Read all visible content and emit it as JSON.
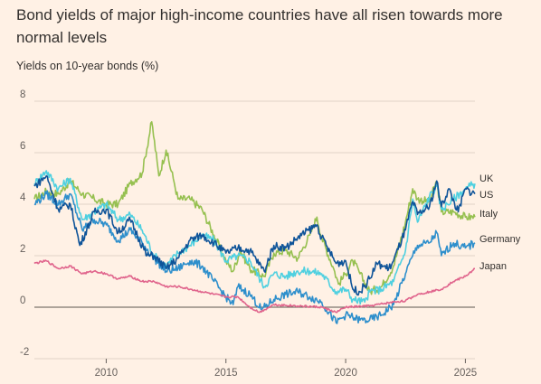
{
  "title": "Bond yields of major high-income countries have all risen towards more normal levels",
  "subtitle": "Yields on 10-year bonds (%)",
  "colors": {
    "background": "#FFF1E5",
    "gridline": "#E0D4C8",
    "zero_line": "#5E5650",
    "UK": "#4FD0E0",
    "US": "#0F5499",
    "Italy": "#96C050",
    "Germany": "#2E8FCC",
    "Japan": "#E0648C"
  },
  "chart_data": {
    "type": "line",
    "title": "Bond yields of major high-income countries have all risen towards more normal levels",
    "ylabel": "Yields on 10-year bonds (%)",
    "xlabel": "",
    "xlim": [
      2007.0,
      2025.4
    ],
    "ylim": [
      -2,
      8
    ],
    "y_ticks": [
      -2,
      0,
      2,
      4,
      6,
      8
    ],
    "x_ticks": [
      2010,
      2015,
      2020,
      2025
    ],
    "grid": true,
    "legend": "direct labels at right end",
    "series": [
      {
        "name": "UK",
        "color": "#4FD0E0",
        "x": [
          2007.0,
          2007.5,
          2008.0,
          2008.5,
          2009.0,
          2009.5,
          2010.0,
          2010.5,
          2011.0,
          2011.5,
          2012.0,
          2012.5,
          2013.0,
          2013.5,
          2014.0,
          2014.5,
          2015.0,
          2015.5,
          2016.0,
          2016.6,
          2017.0,
          2017.5,
          2018.0,
          2018.5,
          2019.0,
          2019.6,
          2020.0,
          2020.3,
          2020.8,
          2021.0,
          2021.5,
          2022.0,
          2022.5,
          2022.8,
          2023.0,
          2023.5,
          2023.8,
          2024.0,
          2024.5,
          2025.0,
          2025.4
        ],
        "values": [
          4.8,
          5.3,
          4.6,
          5.0,
          3.4,
          3.7,
          4.0,
          3.4,
          3.6,
          3.0,
          2.0,
          1.6,
          2.1,
          2.4,
          2.8,
          2.6,
          1.8,
          2.0,
          1.8,
          0.8,
          1.3,
          1.2,
          1.4,
          1.4,
          1.3,
          0.6,
          0.7,
          0.3,
          0.2,
          0.6,
          0.7,
          1.0,
          2.2,
          4.2,
          3.3,
          4.3,
          4.7,
          3.8,
          4.2,
          4.6,
          4.8
        ]
      },
      {
        "name": "US",
        "color": "#0F5499",
        "x": [
          2007.0,
          2007.5,
          2008.0,
          2008.5,
          2008.9,
          2009.5,
          2010.0,
          2010.5,
          2011.0,
          2011.7,
          2012.0,
          2012.5,
          2013.0,
          2013.5,
          2014.0,
          2014.5,
          2015.0,
          2015.5,
          2016.0,
          2016.6,
          2017.0,
          2017.5,
          2018.0,
          2018.8,
          2019.0,
          2019.6,
          2020.0,
          2020.3,
          2020.6,
          2021.0,
          2021.3,
          2021.8,
          2022.0,
          2022.5,
          2022.8,
          2023.0,
          2023.5,
          2023.8,
          2024.0,
          2024.3,
          2024.7,
          2025.0,
          2025.4
        ],
        "values": [
          4.7,
          5.1,
          3.8,
          4.0,
          2.4,
          3.7,
          3.8,
          2.9,
          3.4,
          2.0,
          2.0,
          1.5,
          1.9,
          2.6,
          2.8,
          2.5,
          2.1,
          2.3,
          2.2,
          1.4,
          2.4,
          2.3,
          2.7,
          3.2,
          2.7,
          1.7,
          1.8,
          0.7,
          0.6,
          1.1,
          1.7,
          1.5,
          1.8,
          3.0,
          4.1,
          3.6,
          3.9,
          4.9,
          3.9,
          4.6,
          3.7,
          4.6,
          4.4
        ]
      },
      {
        "name": "Italy",
        "color": "#96C050",
        "x": [
          2007.0,
          2007.5,
          2008.0,
          2008.5,
          2009.0,
          2009.5,
          2010.0,
          2010.5,
          2011.0,
          2011.5,
          2011.9,
          2012.2,
          2012.5,
          2012.8,
          2013.0,
          2013.5,
          2014.0,
          2014.5,
          2015.0,
          2015.3,
          2015.6,
          2016.0,
          2016.6,
          2017.0,
          2017.5,
          2018.0,
          2018.5,
          2018.8,
          2019.0,
          2019.5,
          2019.7,
          2020.0,
          2020.3,
          2020.6,
          2021.0,
          2021.5,
          2022.0,
          2022.5,
          2022.8,
          2023.0,
          2023.5,
          2023.8,
          2024.0,
          2024.5,
          2025.0,
          2025.4
        ],
        "values": [
          4.2,
          4.5,
          4.4,
          4.9,
          4.4,
          4.2,
          4.0,
          4.0,
          4.8,
          5.2,
          7.2,
          5.1,
          6.1,
          5.0,
          4.2,
          4.2,
          3.8,
          2.8,
          1.8,
          1.4,
          2.2,
          1.5,
          1.2,
          2.1,
          2.2,
          1.9,
          2.8,
          3.5,
          2.7,
          1.5,
          0.9,
          1.3,
          1.8,
          1.3,
          0.6,
          0.8,
          1.6,
          3.3,
          4.6,
          4.2,
          4.1,
          4.9,
          3.7,
          3.7,
          3.5,
          3.5
        ]
      },
      {
        "name": "Germany",
        "color": "#2E8FCC",
        "x": [
          2007.0,
          2007.5,
          2008.0,
          2008.5,
          2009.0,
          2009.5,
          2010.0,
          2010.5,
          2011.0,
          2011.5,
          2012.0,
          2012.5,
          2013.0,
          2013.5,
          2014.0,
          2014.5,
          2015.0,
          2015.3,
          2015.5,
          2016.0,
          2016.5,
          2017.0,
          2017.5,
          2018.0,
          2018.5,
          2019.0,
          2019.6,
          2020.0,
          2020.3,
          2020.6,
          2021.0,
          2021.5,
          2022.0,
          2022.5,
          2022.8,
          2023.0,
          2023.5,
          2023.8,
          2024.0,
          2024.5,
          2025.0,
          2025.4
        ],
        "values": [
          4.0,
          4.4,
          4.0,
          4.4,
          3.0,
          3.4,
          3.2,
          2.6,
          3.0,
          2.5,
          1.9,
          1.4,
          1.5,
          1.8,
          1.6,
          1.0,
          0.4,
          0.1,
          0.8,
          0.5,
          -0.1,
          0.3,
          0.5,
          0.6,
          0.4,
          0.2,
          -0.6,
          -0.3,
          -0.4,
          -0.5,
          -0.5,
          -0.3,
          0.1,
          1.3,
          2.0,
          2.4,
          2.5,
          2.9,
          2.0,
          2.5,
          2.3,
          2.5
        ]
      },
      {
        "name": "Japan",
        "color": "#E0648C",
        "x": [
          2007.0,
          2007.5,
          2008.0,
          2008.5,
          2009.0,
          2009.5,
          2010.0,
          2010.5,
          2011.0,
          2011.5,
          2012.0,
          2012.5,
          2013.0,
          2013.5,
          2014.0,
          2014.5,
          2015.0,
          2015.5,
          2016.0,
          2016.4,
          2016.6,
          2017.0,
          2018.0,
          2019.0,
          2019.6,
          2020.0,
          2021.0,
          2022.0,
          2022.5,
          2023.0,
          2023.5,
          2024.0,
          2024.5,
          2025.0,
          2025.4
        ],
        "values": [
          1.7,
          1.8,
          1.5,
          1.6,
          1.3,
          1.4,
          1.3,
          1.1,
          1.2,
          1.0,
          1.0,
          0.8,
          0.8,
          0.7,
          0.6,
          0.5,
          0.4,
          0.4,
          0.0,
          -0.2,
          -0.1,
          0.1,
          0.05,
          0.0,
          -0.2,
          0.0,
          0.05,
          0.2,
          0.25,
          0.5,
          0.6,
          0.7,
          1.0,
          1.2,
          1.5
        ]
      }
    ]
  }
}
